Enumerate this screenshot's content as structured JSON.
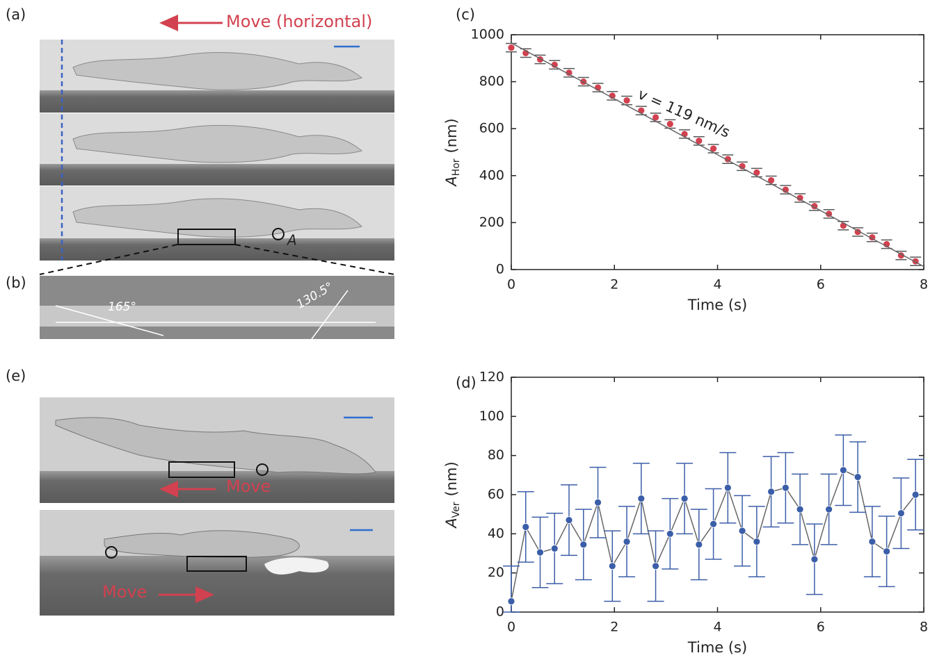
{
  "panels": {
    "a": {
      "label": "(a)",
      "arrow_text": "Move (horizontal)",
      "point_label": "A"
    },
    "b": {
      "label": "(b)",
      "angle_left": "165°",
      "angle_right": "130.5°"
    },
    "e": {
      "label": "(e)",
      "move_top": "Move",
      "move_bottom": "Move"
    }
  },
  "chart_data": [
    {
      "type": "scatter",
      "panel_label": "(c)",
      "x": [
        0,
        0.28,
        0.56,
        0.84,
        1.12,
        1.4,
        1.68,
        1.96,
        2.24,
        2.52,
        2.8,
        3.08,
        3.36,
        3.64,
        3.92,
        4.2,
        4.48,
        4.76,
        5.04,
        5.32,
        5.6,
        5.88,
        6.16,
        6.44,
        6.72,
        7,
        7.28,
        7.56,
        7.84
      ],
      "xlim": [
        0,
        8
      ],
      "ylim": [
        0,
        1000
      ],
      "xticks": [
        0,
        2,
        4,
        6,
        8
      ],
      "yticks": [
        0,
        200,
        400,
        600,
        800,
        1000
      ],
      "xlabel": "Time (s)",
      "ylabel": {
        "symbol": "A",
        "subscript": "Hor",
        "unit": "(nm)"
      },
      "annotation": "v = 119 nm/s",
      "series": [
        {
          "color": "#d2414f",
          "values": [
            945,
            922,
            895,
            872,
            838,
            800,
            775,
            740,
            720,
            677,
            648,
            620,
            577,
            548,
            515,
            470,
            440,
            413,
            380,
            340,
            305,
            270,
            237,
            187,
            160,
            137,
            108,
            60,
            35
          ],
          "errors": [
            18,
            18,
            18,
            18,
            18,
            18,
            18,
            18,
            18,
            18,
            18,
            18,
            18,
            18,
            18,
            18,
            18,
            18,
            18,
            18,
            18,
            18,
            18,
            18,
            18,
            18,
            18,
            18,
            18
          ]
        },
        {
          "color": "#666666",
          "x": [
            0,
            8
          ],
          "values": [
            965,
            13
          ]
        }
      ]
    },
    {
      "type": "line",
      "panel_label": "(d)",
      "x": [
        0,
        0.28,
        0.56,
        0.84,
        1.12,
        1.4,
        1.68,
        1.96,
        2.24,
        2.52,
        2.8,
        3.08,
        3.36,
        3.64,
        3.92,
        4.2,
        4.48,
        4.76,
        5.04,
        5.32,
        5.6,
        5.88,
        6.16,
        6.44,
        6.72,
        7,
        7.28,
        7.56,
        7.84
      ],
      "xlim": [
        0,
        8
      ],
      "ylim": [
        0,
        120
      ],
      "xticks": [
        0,
        2,
        4,
        6,
        8
      ],
      "yticks": [
        0,
        20,
        40,
        60,
        80,
        100,
        120
      ],
      "xlabel": "Time (s)",
      "ylabel": {
        "symbol": "A",
        "subscript": "Ver",
        "unit": "(nm)"
      },
      "series": [
        {
          "color": "#3b5ea8",
          "line_color": "#666666",
          "values": [
            5.5,
            43.5,
            30.5,
            32.5,
            47,
            34.5,
            56,
            23.5,
            36,
            58,
            23.5,
            40,
            58,
            34.5,
            45,
            63.5,
            41.5,
            36,
            61.5,
            63.5,
            52.5,
            27,
            52.5,
            72.5,
            69,
            36,
            31,
            50.5,
            60
          ],
          "errors": [
            18,
            18,
            18,
            18,
            18,
            18,
            18,
            18,
            18,
            18,
            18,
            18,
            18,
            18,
            18,
            18,
            18,
            18,
            18,
            18,
            18,
            18,
            18,
            18,
            18,
            18,
            18,
            18,
            18
          ]
        }
      ]
    }
  ]
}
